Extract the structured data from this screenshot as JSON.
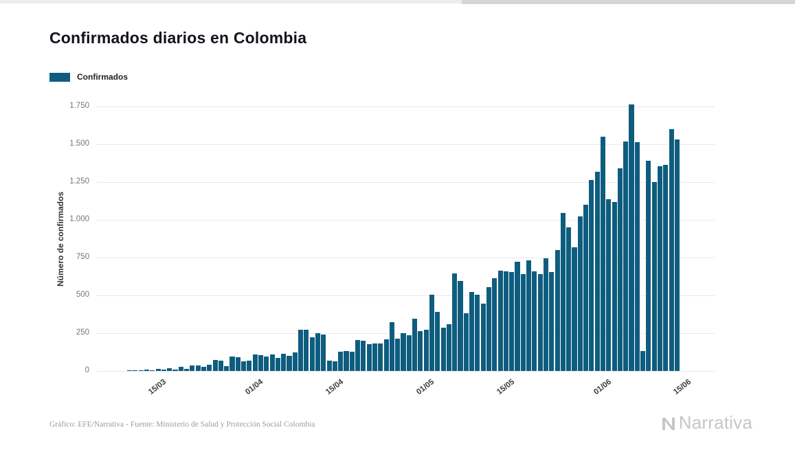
{
  "title": "Confirmados diarios en Colombia",
  "legend": {
    "label": "Confirmados",
    "color": "#0e5d7f"
  },
  "footer": {
    "credit": "Gráfico: EFE/Narrativa - Fuente: Ministerio de Salud y Protección Social Colombia"
  },
  "brand": {
    "name": "Narrativa"
  },
  "chart_data": {
    "type": "bar",
    "title": "Confirmados diarios en Colombia",
    "series_name": "Confirmados",
    "xlabel": "",
    "ylabel": "Número de confirmados",
    "ylim": [
      0,
      1750
    ],
    "grid": "horizontal",
    "legend_position": "top-left",
    "bar_color": "#0e5d7f",
    "y_ticks": [
      0,
      250,
      500,
      750,
      1000,
      1250,
      1500,
      1750
    ],
    "y_tick_labels": [
      "0",
      "250",
      "500",
      "750",
      "1.000",
      "1.250",
      "1.500",
      "1.750"
    ],
    "x_tick_labels": [
      "15/03",
      "01/04",
      "15/04",
      "01/05",
      "15/05",
      "01/06",
      "15/06"
    ],
    "x_tick_indices": [
      6,
      23,
      37,
      53,
      67,
      84,
      98
    ],
    "x": [
      "09/03",
      "10/03",
      "11/03",
      "12/03",
      "13/03",
      "14/03",
      "15/03",
      "16/03",
      "17/03",
      "18/03",
      "19/03",
      "20/03",
      "21/03",
      "22/03",
      "23/03",
      "24/03",
      "25/03",
      "26/03",
      "27/03",
      "28/03",
      "29/03",
      "30/03",
      "31/03",
      "01/04",
      "02/04",
      "03/04",
      "04/04",
      "05/04",
      "06/04",
      "07/04",
      "08/04",
      "09/04",
      "10/04",
      "11/04",
      "12/04",
      "13/04",
      "14/04",
      "15/04",
      "16/04",
      "17/04",
      "18/04",
      "19/04",
      "20/04",
      "21/04",
      "22/04",
      "23/04",
      "24/04",
      "25/04",
      "26/04",
      "27/04",
      "28/04",
      "29/04",
      "30/04",
      "01/05",
      "02/05",
      "03/05",
      "04/05",
      "05/05",
      "06/05",
      "07/05",
      "08/05",
      "09/05",
      "10/05",
      "11/05",
      "12/05",
      "13/05",
      "14/05",
      "15/05",
      "16/05",
      "17/05",
      "18/05",
      "19/05",
      "20/05",
      "21/05",
      "22/05",
      "23/05",
      "24/05",
      "25/05",
      "26/05",
      "27/05",
      "28/05",
      "29/05",
      "30/05",
      "31/05",
      "01/06",
      "02/06",
      "03/06",
      "04/06",
      "05/06",
      "06/06",
      "07/06",
      "08/06",
      "09/06",
      "10/06",
      "11/06",
      "12/06",
      "13/06"
    ],
    "values": [
      3,
      6,
      3,
      8,
      7,
      12,
      10,
      20,
      10,
      28,
      15,
      37,
      35,
      29,
      42,
      72,
      68,
      30,
      96,
      92,
      62,
      70,
      108,
      106,
      96,
      110,
      87,
      112,
      98,
      123,
      274,
      273,
      223,
      249,
      240,
      67,
      65,
      128,
      133,
      128,
      206,
      198,
      178,
      184,
      180,
      210,
      325,
      215,
      250,
      235,
      345,
      265,
      275,
      505,
      390,
      285,
      310,
      645,
      595,
      380,
      525,
      505,
      445,
      555,
      615,
      665,
      660,
      655,
      725,
      640,
      730,
      660,
      640,
      745,
      655,
      800,
      1046,
      950,
      820,
      1022,
      1101,
      1262,
      1320,
      1548,
      1135,
      1120,
      1340,
      1520,
      1766,
      1515,
      130,
      1390,
      1250,
      1355,
      1362,
      1602,
      1530
    ]
  }
}
